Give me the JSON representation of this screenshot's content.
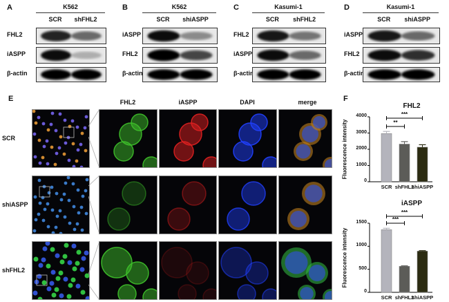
{
  "blots": [
    {
      "panel": "A",
      "cell_line": "K562",
      "lanes": [
        "SCR",
        "shFHL2"
      ],
      "rows": [
        {
          "label": "FHL2",
          "intensity": [
            0.85,
            0.55
          ]
        },
        {
          "label": "iASPP",
          "intensity": [
            0.95,
            0.25
          ]
        },
        {
          "label": "β-actin",
          "intensity": [
            1,
            1
          ]
        }
      ]
    },
    {
      "panel": "B",
      "cell_line": "K562",
      "lanes": [
        "SCR",
        "shiASPP"
      ],
      "rows": [
        {
          "label": "iASPP",
          "intensity": [
            0.95,
            0.4
          ]
        },
        {
          "label": "FHL2",
          "intensity": [
            1,
            0.7
          ]
        },
        {
          "label": "β-actin",
          "intensity": [
            1,
            1
          ]
        }
      ]
    },
    {
      "panel": "C",
      "cell_line": "Kasumi-1",
      "lanes": [
        "SCR",
        "shFHL2"
      ],
      "rows": [
        {
          "label": "FHL2",
          "intensity": [
            0.9,
            0.5
          ]
        },
        {
          "label": "iASPP",
          "intensity": [
            0.95,
            0.55
          ]
        },
        {
          "label": "β-actin",
          "intensity": [
            1,
            1
          ]
        }
      ]
    },
    {
      "panel": "D",
      "cell_line": "Kasumi-1",
      "lanes": [
        "SCR",
        "shiASPP"
      ],
      "rows": [
        {
          "label": "iASPP",
          "intensity": [
            0.9,
            0.55
          ]
        },
        {
          "label": "FHL2",
          "intensity": [
            0.95,
            0.8
          ]
        },
        {
          "label": "β-actin",
          "intensity": [
            1,
            1
          ]
        }
      ]
    }
  ],
  "microscopy": {
    "panel": "E",
    "columns": [
      "FHL2",
      "iASPP",
      "DAPI",
      "merge"
    ],
    "rows": [
      "SCR",
      "shiASPP",
      "shFHL2"
    ]
  },
  "charts_panel": "F",
  "chart_data": [
    {
      "type": "bar",
      "title": "FHL2",
      "ylabel": "Fluorescence intensity",
      "categories": [
        "SCR",
        "shFHL2",
        "shiASPP"
      ],
      "values": [
        2970,
        2320,
        2130
      ],
      "errors": [
        130,
        150,
        150
      ],
      "ylim": [
        0,
        4000
      ],
      "yticks": [
        0,
        1000,
        2000,
        3000,
        4000
      ],
      "colors": [
        "#b4b4bc",
        "#5c5c58",
        "#2c2c12"
      ],
      "significance": [
        {
          "from": "SCR",
          "to": "shiASPP",
          "label": "***"
        },
        {
          "from": "SCR",
          "to": "shFHL2",
          "label": "**"
        }
      ]
    },
    {
      "type": "bar",
      "title": "iASPP",
      "ylabel": "Fluorescence intensity",
      "categories": [
        "SCR",
        "shFHL2",
        "shiASPP"
      ],
      "values": [
        1360,
        565,
        895
      ],
      "errors": [
        30,
        10,
        10
      ],
      "ylim": [
        0,
        1500
      ],
      "yticks": [
        0,
        500,
        1000,
        1500
      ],
      "colors": [
        "#b4b4bc",
        "#5c5c58",
        "#2c2c12"
      ],
      "significance": [
        {
          "from": "SCR",
          "to": "shiASPP",
          "label": "***"
        },
        {
          "from": "SCR",
          "to": "shFHL2",
          "label": "***"
        }
      ]
    }
  ]
}
